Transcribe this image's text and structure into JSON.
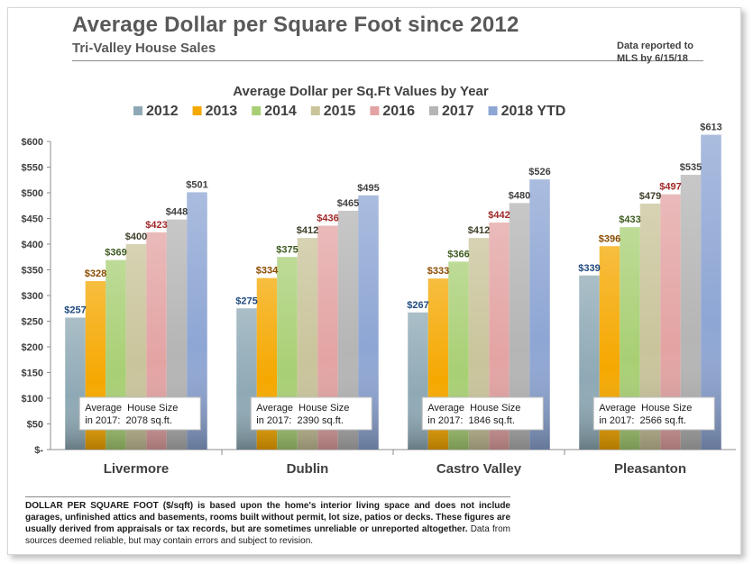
{
  "header": {
    "title": "Average Dollar per Square Foot since 2012",
    "subtitle": "Tri-Valley House Sales",
    "reported_line1": "Data reported to",
    "reported_line2": "MLS by 6/15/18"
  },
  "note": {
    "bold_text": "DOLLAR PER SQUARE FOOT ($/sqft) is based upon the home's interior living space and does not include garages, unfinished attics and basements, rooms built without permit, lot size, patios or decks. These figures are usually derived from appraisals or tax records, but are sometimes unreliable or unreported altogether.",
    "normal_text": "Data from sources deemed reliable, but may contain errors and subject to revision."
  },
  "chart_data": {
    "type": "bar",
    "title": "Average Dollar per Sq.Ft Values by Year",
    "xlabel": "",
    "ylabel": "",
    "ylim": [
      0,
      600
    ],
    "yticks": [
      0,
      50,
      100,
      150,
      200,
      250,
      300,
      350,
      400,
      450,
      500,
      550,
      600
    ],
    "ytick_labels": [
      "$-",
      "$50",
      "$100",
      "$150",
      "$200",
      "$250",
      "$300",
      "$350",
      "$400",
      "$450",
      "$500",
      "$550",
      "$600"
    ],
    "grid": false,
    "legend_position": "top",
    "categories": [
      "Livermore",
      "Dublin",
      "Castro Valley",
      "Pleasanton"
    ],
    "series": [
      {
        "name": "2012",
        "color": "#8ea9b5",
        "label_color": "#1f497d",
        "values": [
          257,
          275,
          267,
          339
        ]
      },
      {
        "name": "2013",
        "color": "#f5a800",
        "label_color": "#8a4b00",
        "values": [
          328,
          334,
          333,
          396
        ]
      },
      {
        "name": "2014",
        "color": "#a8cf74",
        "label_color": "#3c5a1e",
        "values": [
          369,
          375,
          366,
          433
        ]
      },
      {
        "name": "2015",
        "color": "#c9c49a",
        "label_color": "#3f3f2a",
        "values": [
          400,
          412,
          412,
          479
        ]
      },
      {
        "name": "2016",
        "color": "#e3a3a3",
        "label_color": "#a02828",
        "values": [
          423,
          436,
          442,
          497
        ]
      },
      {
        "name": "2017",
        "color": "#b5b5b5",
        "label_color": "#404040",
        "values": [
          448,
          465,
          480,
          535
        ]
      },
      {
        "name": "2018 YTD",
        "color": "#8ea6d4",
        "label_color": "#404040",
        "values": [
          501,
          495,
          526,
          613
        ]
      }
    ],
    "data_labels": [
      [
        "$257",
        "$328",
        "$369",
        "$400",
        "$423",
        "$448",
        "$501"
      ],
      [
        "$275",
        "$334",
        "$375",
        "$412",
        "$436",
        "$465",
        "$495"
      ],
      [
        "$267",
        "$333",
        "$366",
        "$412",
        "$442",
        "$480",
        "$526"
      ],
      [
        "$339",
        "$396",
        "$433",
        "$479",
        "$497",
        "$535",
        "$613"
      ]
    ],
    "annotations": [
      {
        "line1": "Average  House Size",
        "line2": "in 2017:  2078 sq.ft."
      },
      {
        "line1": "Average  House Size",
        "line2": "in 2017:  2390 sq.ft."
      },
      {
        "line1": "Average  House Size",
        "line2": "in 2017:  1846 sq.ft."
      },
      {
        "line1": "Average  House Size",
        "line2": "in 2017:  2566 sq.ft."
      }
    ]
  }
}
